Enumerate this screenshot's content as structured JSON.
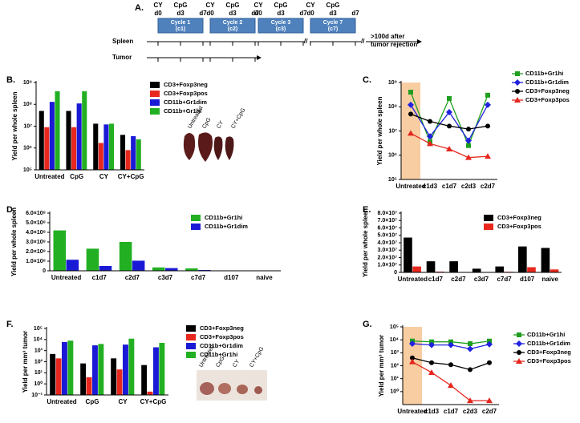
{
  "schematic": {
    "panel": "A.",
    "drugs": [
      "CY",
      "CpG"
    ],
    "days": [
      "d0",
      "d3",
      "d7"
    ],
    "cycles": [
      {
        "name": "Cycle 1",
        "code": "(c1)"
      },
      {
        "name": "Cycle 2",
        "code": "(c2)"
      },
      {
        "name": "Cycle 3",
        "code": "(c3)"
      },
      {
        "name": "Cycle 7",
        "code": "(c7)"
      }
    ],
    "rows": [
      "Spleen",
      "Tumor"
    ],
    "note": [
      ">100d after",
      "tumor rejection"
    ]
  },
  "photos": [
    {
      "labels": [
        "Untreated",
        "CpG",
        "CY",
        "CY+CpG"
      ]
    },
    {
      "labels": [
        "Untreated",
        "CpG",
        "CY",
        "CY+CpG"
      ]
    }
  ],
  "chart_data": [
    {
      "type": "bar",
      "panel": "B.",
      "ylabel": "Yield per whole spleen",
      "log": true,
      "categories": [
        "Untreated",
        "CpG",
        "CY",
        "CY+CpG"
      ],
      "ylim": [
        100000,
        1000000000
      ],
      "yticks": [
        {
          "value": 100000,
          "label": "10⁵"
        },
        {
          "value": 1000000,
          "label": "10⁶"
        },
        {
          "value": 10000000,
          "label": "10⁷"
        },
        {
          "value": 100000000,
          "label": "10⁸"
        },
        {
          "value": 1000000000,
          "label": "10⁹"
        }
      ],
      "series": [
        {
          "name": "CD3+Foxp3neg",
          "color": "#000000",
          "values": [
            50000000,
            50000000,
            13000000,
            4000000
          ]
        },
        {
          "name": "CD3+Foxp3pos",
          "color": "#e8281e",
          "values": [
            9000000,
            9000000,
            1700000,
            800000
          ]
        },
        {
          "name": "CD11b+Gr1dim",
          "color": "#1a1ad6",
          "values": [
            130000000,
            110000000,
            12000000,
            3500000
          ]
        },
        {
          "name": "CD11b+Gr1hi",
          "color": "#22b022",
          "values": [
            400000000,
            400000000,
            13000000,
            2500000
          ]
        }
      ]
    },
    {
      "type": "line",
      "panel": "C.",
      "ylabel": "Yield per whole spleen",
      "log": true,
      "band_color": "#f8cda2",
      "categories": [
        "Untreated",
        "c1d3",
        "c1d7",
        "c2d3",
        "c2d7"
      ],
      "ylim": [
        100000,
        1000000000
      ],
      "yticks": [
        {
          "value": 100000,
          "label": "10⁵"
        },
        {
          "value": 1000000,
          "label": "10⁶"
        },
        {
          "value": 10000000,
          "label": "10⁷"
        },
        {
          "value": 100000000,
          "label": "10⁸"
        },
        {
          "value": 1000000000,
          "label": "10⁹"
        }
      ],
      "series": [
        {
          "name": "CD11b+Gr1hi",
          "color": "#1f9e1f",
          "marker": "square",
          "values": [
            400000000,
            3500000,
            220000000,
            2500000,
            300000000
          ]
        },
        {
          "name": "CD11b+Gr1dim",
          "color": "#2121e0",
          "marker": "diamond",
          "values": [
            120000000,
            6000000,
            60000000,
            4000000,
            120000000
          ]
        },
        {
          "name": "CD3+Foxp3neg",
          "color": "#000000",
          "marker": "circle",
          "values": [
            50000000,
            25000000,
            16000000,
            12000000,
            16000000
          ]
        },
        {
          "name": "CD3+Foxp3pos",
          "color": "#e5261d",
          "marker": "triangle",
          "values": [
            8000000,
            3000000,
            1800000,
            800000,
            900000
          ]
        }
      ]
    },
    {
      "type": "bar",
      "panel": "D.",
      "ylabel": "Yield per whole spleen",
      "log": false,
      "categories": [
        "Untreated",
        "c1d7",
        "c2d7",
        "c3d7",
        "c7d7",
        "d107",
        "naive"
      ],
      "ylim": [
        0,
        600000000
      ],
      "yticks": [
        0,
        {
          "value": 100000000,
          "label": "1.0×10⁸"
        },
        {
          "value": 200000000,
          "label": "2.0×10⁸"
        },
        {
          "value": 300000000,
          "label": "3.0×10⁸"
        },
        {
          "value": 400000000,
          "label": "4.0×10⁸"
        },
        {
          "value": 500000000,
          "label": "5.0×10⁸"
        },
        {
          "value": 600000000,
          "label": "6.0×10⁸"
        }
      ],
      "series": [
        {
          "name": "CD11b+Gr1hi",
          "color": "#22b022",
          "values": [
            420000000,
            230000000,
            300000000,
            35000000,
            25000000,
            2000000,
            2000000
          ]
        },
        {
          "name": "CD11b+Gr1dim",
          "color": "#1a1ad6",
          "values": [
            115000000,
            50000000,
            105000000,
            28000000,
            8000000,
            1000000,
            1000000
          ]
        }
      ]
    },
    {
      "type": "bar",
      "panel": "E.",
      "ylabel": "Yield per whole spleen",
      "log": false,
      "categories": [
        "Untreated",
        "c1d7",
        "c2d7",
        "c3d7",
        "c7d7",
        "d107",
        "naive"
      ],
      "ylim": [
        0,
        80000000
      ],
      "yticks": [
        0,
        {
          "value": 10000000,
          "label": "1.0×10⁷"
        },
        {
          "value": 20000000,
          "label": "2.0×10⁷"
        },
        {
          "value": 30000000,
          "label": "3.0×10⁷"
        },
        {
          "value": 40000000,
          "label": "4.0×10⁷"
        },
        {
          "value": 50000000,
          "label": "5.0×10⁷"
        },
        {
          "value": 60000000,
          "label": "6.0×10⁷"
        },
        {
          "value": 70000000,
          "label": "7.0×10⁷"
        },
        {
          "value": 80000000,
          "label": "8.0×10⁷"
        }
      ],
      "series": [
        {
          "name": "CD3+Foxp3neg",
          "color": "#000000",
          "values": [
            47000000,
            15000000,
            15000000,
            5000000,
            8000000,
            35000000,
            33000000
          ]
        },
        {
          "name": "CD3+Foxp3pos",
          "color": "#e8281e",
          "values": [
            8000000,
            1000000,
            500000,
            500000,
            800000,
            7000000,
            4000000
          ]
        }
      ]
    },
    {
      "type": "bar",
      "panel": "F.",
      "ylabel": "Yield per mm³ tumor",
      "log": true,
      "categories": [
        "Untreated",
        "CpG",
        "CY",
        "CY+CpG"
      ],
      "ylim": [
        0.1,
        100000
      ],
      "yticks": [
        {
          "value": 0.1,
          "label": "10⁻¹"
        },
        {
          "value": 1,
          "label": "10⁰"
        },
        {
          "value": 10,
          "label": "10¹"
        },
        {
          "value": 100,
          "label": "10²"
        },
        {
          "value": 1000,
          "label": "10³"
        },
        {
          "value": 10000,
          "label": "10⁴"
        },
        {
          "value": 100000,
          "label": "10⁵"
        }
      ],
      "series": [
        {
          "name": "CD3+Foxp3neg",
          "color": "#000000",
          "values": [
            500,
            70,
            200,
            50
          ]
        },
        {
          "name": "CD3+Foxp3pos",
          "color": "#e8281e",
          "values": [
            200,
            4,
            20,
            0.2
          ]
        },
        {
          "name": "CD11b+Gr1dim",
          "color": "#1a1ad6",
          "values": [
            6000,
            3000,
            3500,
            2000
          ]
        },
        {
          "name": "CD11b+Gr1hi",
          "color": "#22b022",
          "values": [
            8000,
            4000,
            12000,
            5000
          ]
        }
      ]
    },
    {
      "type": "line",
      "panel": "G.",
      "ylabel": "Yield per mm³ tumor",
      "log": true,
      "band_color": "#f8cda2",
      "categories": [
        "Untreated",
        "c1d3",
        "c1d7",
        "c2d3",
        "c2d7"
      ],
      "ylim": [
        0.1,
        100000
      ],
      "yticks": [
        {
          "value": 1,
          "label": "10⁰"
        },
        {
          "value": 10,
          "label": "10¹"
        },
        {
          "value": 100,
          "label": "10²"
        },
        {
          "value": 1000,
          "label": "10³"
        },
        {
          "value": 10000,
          "label": "10⁴"
        },
        {
          "value": 100000,
          "label": "10⁵"
        }
      ],
      "series": [
        {
          "name": "CD11b+Gr1hi",
          "color": "#1f9e1f",
          "marker": "square",
          "values": [
            8000,
            7000,
            7000,
            5000,
            8000
          ]
        },
        {
          "name": "CD11b+Gr1dim",
          "color": "#2121e0",
          "marker": "diamond",
          "values": [
            5000,
            4000,
            4000,
            2000,
            4500
          ]
        },
        {
          "name": "CD3+Foxp3neg",
          "color": "#000000",
          "marker": "circle",
          "values": [
            400,
            170,
            120,
            50,
            170
          ]
        },
        {
          "name": "CD3+Foxp3pos",
          "color": "#e5261d",
          "marker": "triangle",
          "values": [
            200,
            30,
            3,
            0.2,
            0.2
          ]
        }
      ]
    }
  ]
}
